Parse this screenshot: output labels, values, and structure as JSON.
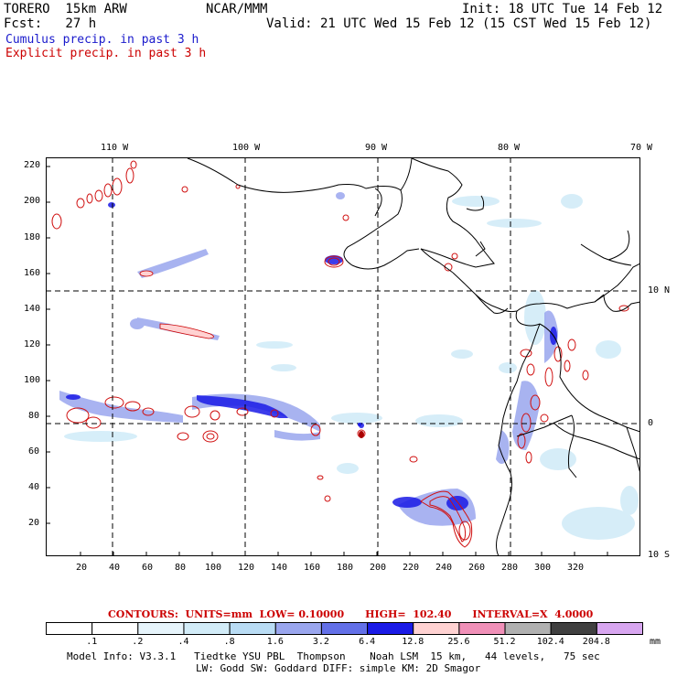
{
  "header": {
    "model": "TORERO  15km ARW",
    "center": "NCAR/MMM",
    "init": "Init: 18 UTC Tue 14 Feb 12",
    "forecast": "Fcst:   27 h",
    "valid": "Valid: 21 UTC Wed 15 Feb 12 (15 CST Wed 15 Feb 12)",
    "field1": "Cumulus precip. in past 3 h",
    "field2": "Explicit precip. in past 3 h",
    "field1_color": "#1a1acc",
    "field2_color": "#cc0000"
  },
  "map": {
    "top_labels": [
      "110 W",
      "100 W",
      "90 W",
      "80 W",
      "70 W"
    ],
    "right_labels": [
      "10 N",
      "0",
      "10 S"
    ],
    "y_ticks": [
      "220",
      "200",
      "180",
      "160",
      "140",
      "120",
      "100",
      "80",
      "60",
      "40",
      "20"
    ],
    "x_ticks": [
      "20",
      "40",
      "60",
      "80",
      "100",
      "120",
      "140",
      "160",
      "180",
      "200",
      "220",
      "240",
      "260",
      "280",
      "300",
      "320"
    ]
  },
  "contours": {
    "text": "CONTOURS:  UNITS=mm  LOW= 0.10000      HIGH=  102.40      INTERVAL=X  4.0000"
  },
  "colorbar": {
    "labels": [
      ".1",
      ".2",
      ".4",
      ".8",
      "1.6",
      "3.2",
      "6.4",
      "12.8",
      "25.6",
      "51.2",
      "102.4",
      "204.8"
    ],
    "unit": "mm",
    "colors": [
      "#ffffff",
      "#ffffff",
      "#e6f4fb",
      "#d2ecf8",
      "#b9dcf4",
      "#9aa6ee",
      "#6370e8",
      "#1a1ae6",
      "#ffd2d2",
      "#f090b8",
      "#b0b0b0",
      "#404040",
      "#d8a6f0"
    ]
  },
  "footer": {
    "line1": "Model Info: V3.3.1   Tiedtke YSU PBL  Thompson    Noah LSM  15 km,   44 levels,   75 sec",
    "line2": "LW: Godd SW: Goddard DIFF: simple KM: 2D Smagor"
  }
}
